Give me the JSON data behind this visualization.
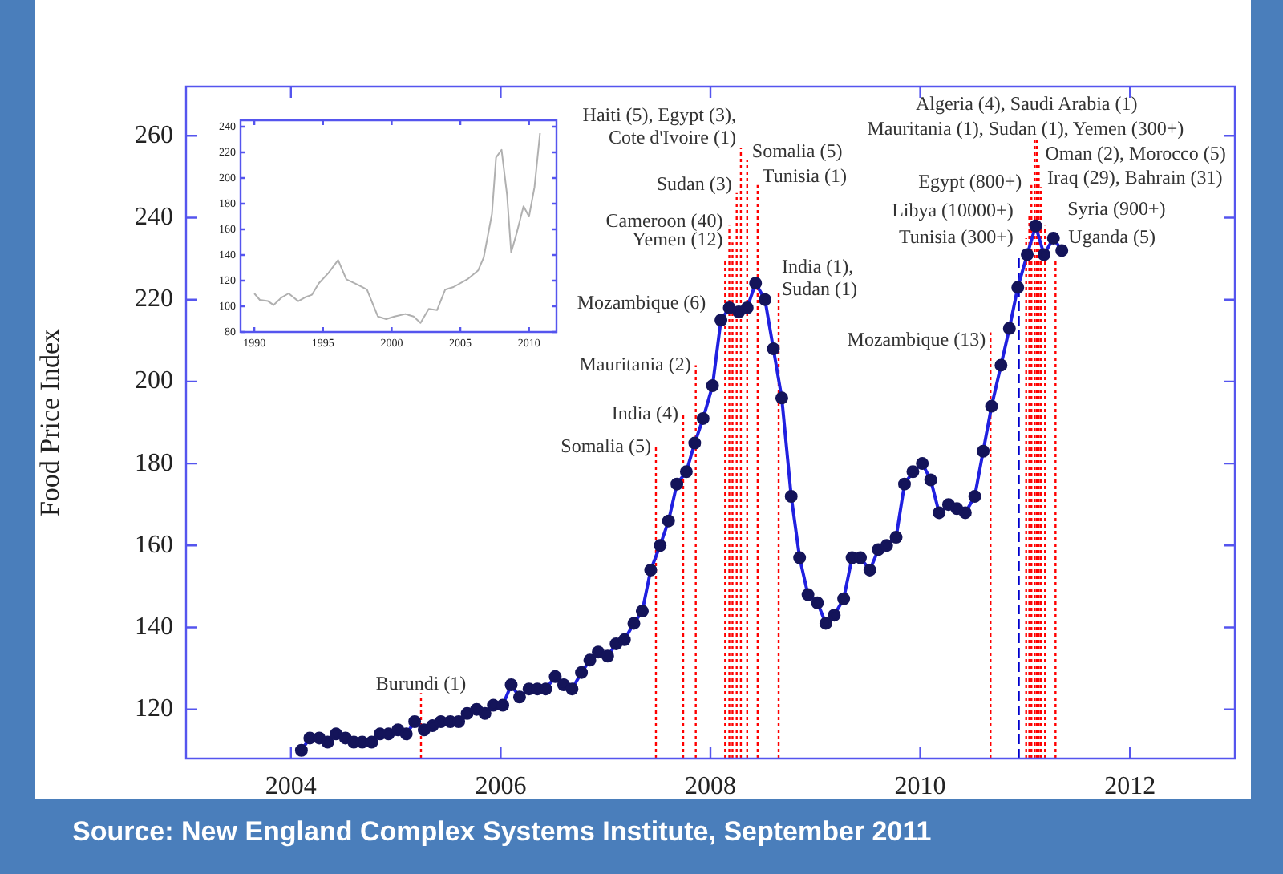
{
  "chart_data": [
    {
      "type": "line",
      "ylabel": "Food Price Index",
      "xlim": [
        2003,
        2013
      ],
      "ylim": [
        108,
        272
      ],
      "xticks": [
        2004,
        2006,
        2008,
        2010,
        2012
      ],
      "yticks": [
        120,
        140,
        160,
        180,
        200,
        220,
        240,
        260
      ],
      "marker": "circle",
      "line_style": "solid",
      "legend": false,
      "x": [
        2004.1,
        2004.18,
        2004.27,
        2004.35,
        2004.43,
        2004.52,
        2004.6,
        2004.68,
        2004.77,
        2004.85,
        2004.93,
        2005.02,
        2005.1,
        2005.18,
        2005.27,
        2005.35,
        2005.43,
        2005.52,
        2005.6,
        2005.68,
        2005.77,
        2005.85,
        2005.93,
        2006.02,
        2006.1,
        2006.18,
        2006.27,
        2006.35,
        2006.43,
        2006.52,
        2006.6,
        2006.68,
        2006.77,
        2006.85,
        2006.93,
        2007.02,
        2007.1,
        2007.18,
        2007.27,
        2007.35,
        2007.43,
        2007.52,
        2007.6,
        2007.68,
        2007.77,
        2007.85,
        2007.93,
        2008.02,
        2008.1,
        2008.18,
        2008.27,
        2008.35,
        2008.43,
        2008.52,
        2008.6,
        2008.68,
        2008.77,
        2008.85,
        2008.93,
        2009.02,
        2009.1,
        2009.18,
        2009.27,
        2009.35,
        2009.43,
        2009.52,
        2009.6,
        2009.68,
        2009.77,
        2009.85,
        2009.93,
        2010.02,
        2010.1,
        2010.18,
        2010.27,
        2010.35,
        2010.43,
        2010.52,
        2010.6,
        2010.68,
        2010.77,
        2010.85,
        2010.93,
        2011.02,
        2011.1,
        2011.18,
        2011.27,
        2011.35
      ],
      "series": [
        {
          "color": "#2020e0",
          "values": [
            110,
            113,
            113,
            112,
            114,
            113,
            112,
            112,
            112,
            114,
            114,
            115,
            114,
            117,
            115,
            116,
            117,
            117,
            117,
            119,
            120,
            119,
            121,
            121,
            126,
            123,
            125,
            125,
            125,
            128,
            126,
            125,
            129,
            132,
            134,
            133,
            136,
            137,
            141,
            144,
            154,
            160,
            166,
            175,
            178,
            185,
            191,
            199,
            215,
            218,
            217,
            218,
            224,
            220,
            208,
            196,
            172,
            157,
            148,
            146,
            141,
            143,
            147,
            157,
            157,
            154,
            159,
            160,
            162,
            175,
            178,
            180,
            176,
            168,
            170,
            169,
            168,
            172,
            183,
            194,
            204,
            213,
            223,
            231,
            238,
            231,
            235,
            232
          ]
        }
      ],
      "ref_lines": [
        {
          "axis": "x",
          "value": 2005.24,
          "label": "Burundi (1)",
          "color": "#ff0000",
          "line_style": "dotted"
        },
        {
          "axis": "x",
          "value": 2007.48,
          "label": "Somalia (5)",
          "color": "#ff0000",
          "line_style": "dotted"
        },
        {
          "axis": "x",
          "value": 2007.74,
          "label": "India (4)",
          "color": "#ff0000",
          "line_style": "dotted"
        },
        {
          "axis": "x",
          "value": 2007.86,
          "label": "Mauritania (2)",
          "color": "#ff0000",
          "line_style": "dotted"
        },
        {
          "axis": "x",
          "value": 2008.14,
          "label": "Mozambique (6)",
          "color": "#ff0000",
          "line_style": "dotted"
        },
        {
          "axis": "x",
          "value": 2008.18,
          "label": "Cameroon (40)",
          "color": "#ff0000",
          "line_style": "dotted"
        },
        {
          "axis": "x",
          "value": 2008.21,
          "label": "Yemen (12)",
          "color": "#ff0000",
          "line_style": "dotted"
        },
        {
          "axis": "x",
          "value": 2008.25,
          "label": "Sudan (3)",
          "color": "#ff0000",
          "line_style": "dotted"
        },
        {
          "axis": "x",
          "value": 2008.29,
          "label": "Haiti (5), Egypt (3), Cote d'Ivoire (1)",
          "color": "#ff0000",
          "line_style": "dotted"
        },
        {
          "axis": "x",
          "value": 2008.35,
          "label": "Somalia (5)",
          "color": "#ff0000",
          "line_style": "dotted"
        },
        {
          "axis": "x",
          "value": 2008.45,
          "label": "Tunisia (1)",
          "color": "#ff0000",
          "line_style": "dotted"
        },
        {
          "axis": "x",
          "value": 2008.65,
          "label": "India (1), Sudan (1)",
          "color": "#ff0000",
          "line_style": "dotted"
        },
        {
          "axis": "x",
          "value": 2010.67,
          "label": "Mozambique (13)",
          "color": "#ff0000",
          "line_style": "dotted"
        },
        {
          "axis": "x",
          "value": 2010.94,
          "color": "#0000cc",
          "line_style": "dashed"
        },
        {
          "axis": "x",
          "value": 2011.01,
          "label": "Tunisia (300+)",
          "color": "#ff0000",
          "line_style": "dotted"
        },
        {
          "axis": "x",
          "value": 2011.04,
          "label": "Libya (10000+)",
          "color": "#ff0000",
          "line_style": "dotted"
        },
        {
          "axis": "x",
          "value": 2011.06,
          "label": "Egypt (800+)",
          "color": "#ff0000",
          "line_style": "dotted"
        },
        {
          "axis": "x",
          "value": 2011.09,
          "label": "Algeria (4), Saudi Arabia (1)",
          "color": "#ff0000",
          "line_style": "dotted"
        },
        {
          "axis": "x",
          "value": 2011.11,
          "label": "Mauritania (1), Sudan (1), Yemen (300+)",
          "color": "#ff0000",
          "line_style": "dotted"
        },
        {
          "axis": "x",
          "value": 2011.13,
          "label": "Oman (2), Morocco (5)",
          "color": "#ff0000",
          "line_style": "dotted"
        },
        {
          "axis": "x",
          "value": 2011.15,
          "label": "Iraq (29), Bahrain (31)",
          "color": "#ff0000",
          "line_style": "dotted"
        },
        {
          "axis": "x",
          "value": 2011.19,
          "label": "Syria (900+)",
          "color": "#ff0000",
          "line_style": "dotted"
        },
        {
          "axis": "x",
          "value": 2011.29,
          "label": "Uganda (5)",
          "color": "#ff0000",
          "line_style": "dotted"
        }
      ],
      "annotations": [
        "Source: New England Complex Systems Institute, September 2011"
      ]
    },
    {
      "type": "line",
      "xlim": [
        1989,
        2012
      ],
      "ylim": [
        80,
        245
      ],
      "xticks": [
        1990,
        1995,
        2000,
        2005,
        2010
      ],
      "yticks": [
        80,
        100,
        120,
        140,
        160,
        180,
        200,
        220,
        240
      ],
      "marker": "none",
      "legend": false,
      "x": [
        1990,
        1990.4,
        1991,
        1991.4,
        1992,
        1992.5,
        1993.2,
        1993.7,
        1994.2,
        1994.7,
        1995.4,
        1996.1,
        1996.7,
        1997.5,
        1998.2,
        1999,
        1999.6,
        2000.2,
        2001,
        2001.6,
        2002.1,
        2002.7,
        2003.3,
        2003.9,
        2004.5,
        2005.5,
        2006.3,
        2006.7,
        2007.3,
        2007.6,
        2008,
        2008.4,
        2008.7,
        2009.1,
        2009.6,
        2010,
        2010.4,
        2010.8
      ],
      "series": [
        {
          "color": "#b0b0b0",
          "values": [
            110,
            105,
            104,
            101,
            107,
            110,
            104,
            107,
            109,
            118,
            126,
            136,
            121,
            117,
            113,
            92,
            90,
            92,
            94,
            92,
            87,
            98,
            97,
            113,
            115,
            121,
            128,
            138,
            172,
            216,
            222,
            187,
            142,
            157,
            178,
            170,
            193,
            235
          ]
        }
      ]
    }
  ]
}
